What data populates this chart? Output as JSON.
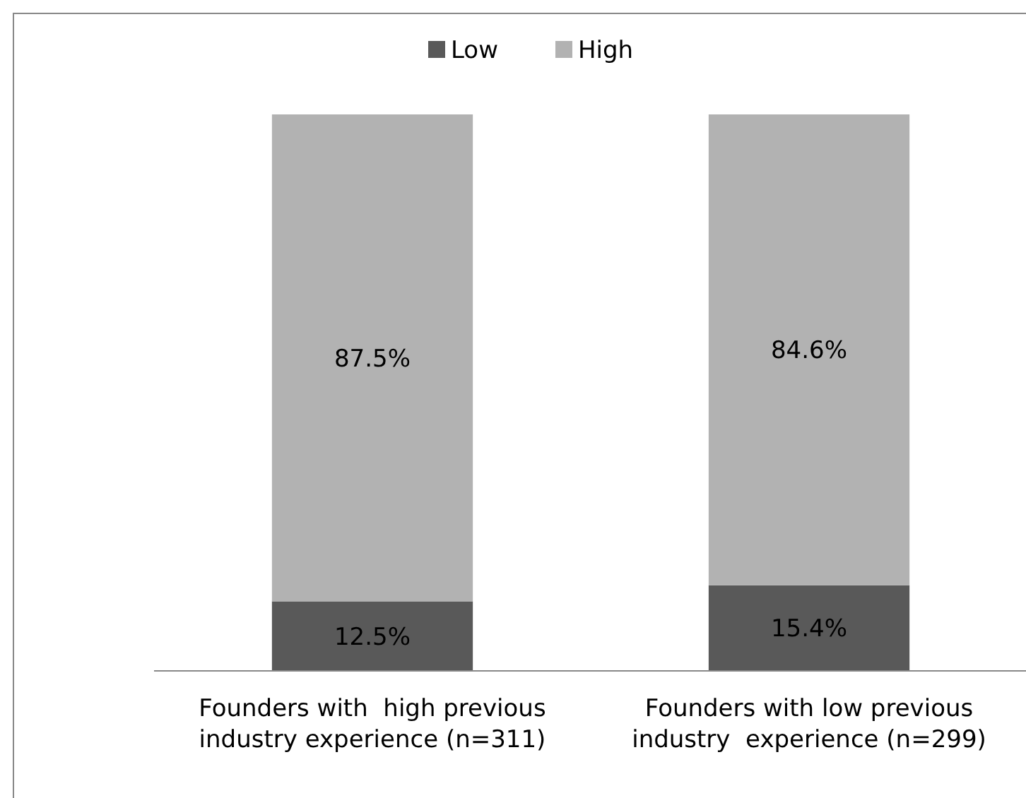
{
  "chart_data": {
    "type": "bar",
    "stacked": true,
    "categories": [
      "Founders with  high previous industry experience (n=311)",
      "Founders with low previous industry  experience (n=299)"
    ],
    "series": [
      {
        "name": "Low",
        "color": "#595959",
        "values": [
          12.5,
          15.4
        ],
        "value_labels": [
          "12.5%",
          "15.4%"
        ]
      },
      {
        "name": "High",
        "color": "#b2b2b2",
        "values": [
          87.5,
          84.6
        ],
        "value_labels": [
          "87.5%",
          "84.6%"
        ]
      }
    ],
    "ylim": [
      0,
      100
    ],
    "tick_labels": "x",
    "legend": "top"
  }
}
